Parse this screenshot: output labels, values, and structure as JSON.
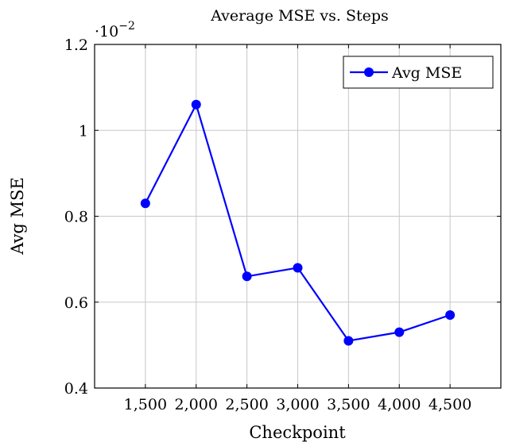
{
  "chart_data": {
    "type": "line",
    "title": "Average MSE vs. Steps",
    "xlabel": "Checkpoint",
    "ylabel": "Avg MSE",
    "y_multiplier_base": "·10",
    "y_multiplier_exponent": "−2",
    "x": [
      1500,
      2000,
      2500,
      3000,
      3500,
      4000,
      4500
    ],
    "x_tick_labels": [
      "1,500",
      "2,000",
      "2,500",
      "3,000",
      "3,500",
      "4,000",
      "4,500"
    ],
    "xlim": [
      1000,
      5000
    ],
    "ylim": [
      0.4,
      1.2
    ],
    "y_ticks": [
      0.4,
      0.6,
      0.8,
      1.0,
      1.2
    ],
    "y_tick_labels": [
      "0.4",
      "0.6",
      "0.8",
      "1",
      "1.2"
    ],
    "grid": true,
    "legend_position": "top-right",
    "series": [
      {
        "name": "Avg MSE",
        "color": "#0000ff",
        "marker": "circle",
        "values": [
          0.83,
          1.06,
          0.66,
          0.68,
          0.51,
          0.53,
          0.57
        ]
      }
    ]
  }
}
